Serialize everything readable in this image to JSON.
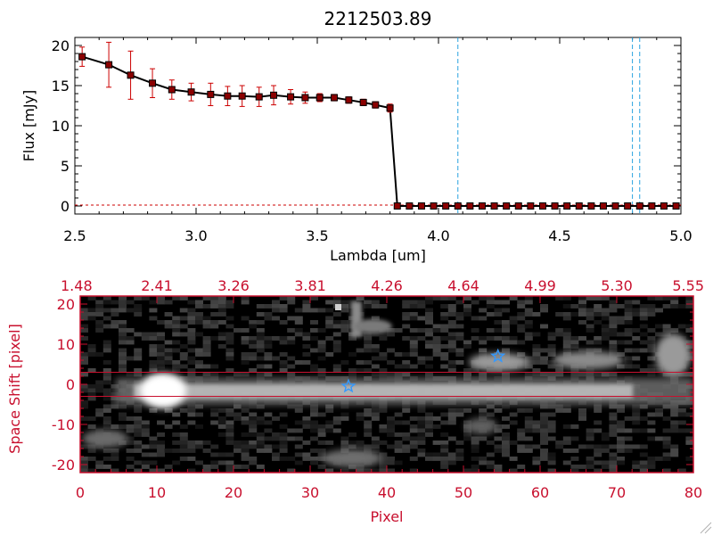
{
  "chart_data": [
    {
      "type": "line",
      "title": "2212503.89",
      "xlabel": "Lambda [um]",
      "ylabel": "Flux [mJy]",
      "xlim": [
        2.5,
        5.0
      ],
      "ylim": [
        -1,
        21
      ],
      "xticks": [
        "2.5",
        "3.0",
        "3.5",
        "4.0",
        "4.5",
        "5.0"
      ],
      "yticks": [
        "0",
        "5",
        "10",
        "15",
        "20"
      ],
      "colors": {
        "line": "#000000",
        "marker": "#8b0000",
        "errorbar": "#cc0000",
        "vline": "#29a3e0"
      },
      "series": [
        {
          "name": "flux",
          "x": [
            2.53,
            2.64,
            2.73,
            2.82,
            2.9,
            2.98,
            3.06,
            3.13,
            3.19,
            3.26,
            3.32,
            3.39,
            3.45,
            3.51,
            3.57,
            3.63,
            3.69,
            3.74,
            3.8,
            3.83,
            3.88,
            3.93,
            3.98,
            4.03,
            4.08,
            4.13,
            4.18,
            4.23,
            4.28,
            4.33,
            4.38,
            4.43,
            4.48,
            4.53,
            4.58,
            4.63,
            4.68,
            4.73,
            4.78,
            4.83,
            4.88,
            4.93,
            4.98
          ],
          "y": [
            18.6,
            17.6,
            16.3,
            15.3,
            14.5,
            14.2,
            13.9,
            13.7,
            13.7,
            13.6,
            13.8,
            13.6,
            13.5,
            13.5,
            13.5,
            13.2,
            12.9,
            12.6,
            12.2,
            0,
            0,
            0,
            0,
            0,
            0,
            0,
            0,
            0,
            0,
            0,
            0,
            0,
            0,
            0,
            0,
            0,
            0,
            0,
            0,
            0,
            0,
            0,
            0
          ],
          "err": [
            1.2,
            2.8,
            3.0,
            1.8,
            1.2,
            1.1,
            1.4,
            1.2,
            1.3,
            1.2,
            1.2,
            0.9,
            0.7,
            0.5,
            0.4,
            0.4,
            0.4,
            0.4,
            0.5,
            0,
            0,
            0,
            0,
            0,
            0,
            0,
            0,
            0,
            0,
            0,
            0,
            0,
            0,
            0,
            0,
            0,
            0,
            0,
            0,
            0,
            0,
            0,
            0
          ]
        }
      ],
      "vlines": [
        4.08,
        4.8,
        4.83
      ]
    },
    {
      "type": "heatmap",
      "xlabel": "Pixel",
      "ylabel": "Space Shift [pixel]",
      "xlim": [
        0,
        80
      ],
      "ylim": [
        -22,
        22
      ],
      "xticks": [
        "0",
        "10",
        "20",
        "30",
        "40",
        "50",
        "60",
        "70",
        "80"
      ],
      "yticks": [
        "-20",
        "-10",
        "0",
        "10",
        "20"
      ],
      "top_axis_ticks": [
        "1.48",
        "2.41",
        "3.26",
        "3.81",
        "4.26",
        "4.64",
        "4.99",
        "5.30",
        "5.55"
      ],
      "aperture_lines": [
        3,
        -3
      ],
      "stars": [
        [
          35,
          -0.5
        ],
        [
          54.5,
          7
        ]
      ],
      "colors": {
        "axes": "#c8102e",
        "star": "#3399ff",
        "background": "#000000"
      }
    }
  ]
}
